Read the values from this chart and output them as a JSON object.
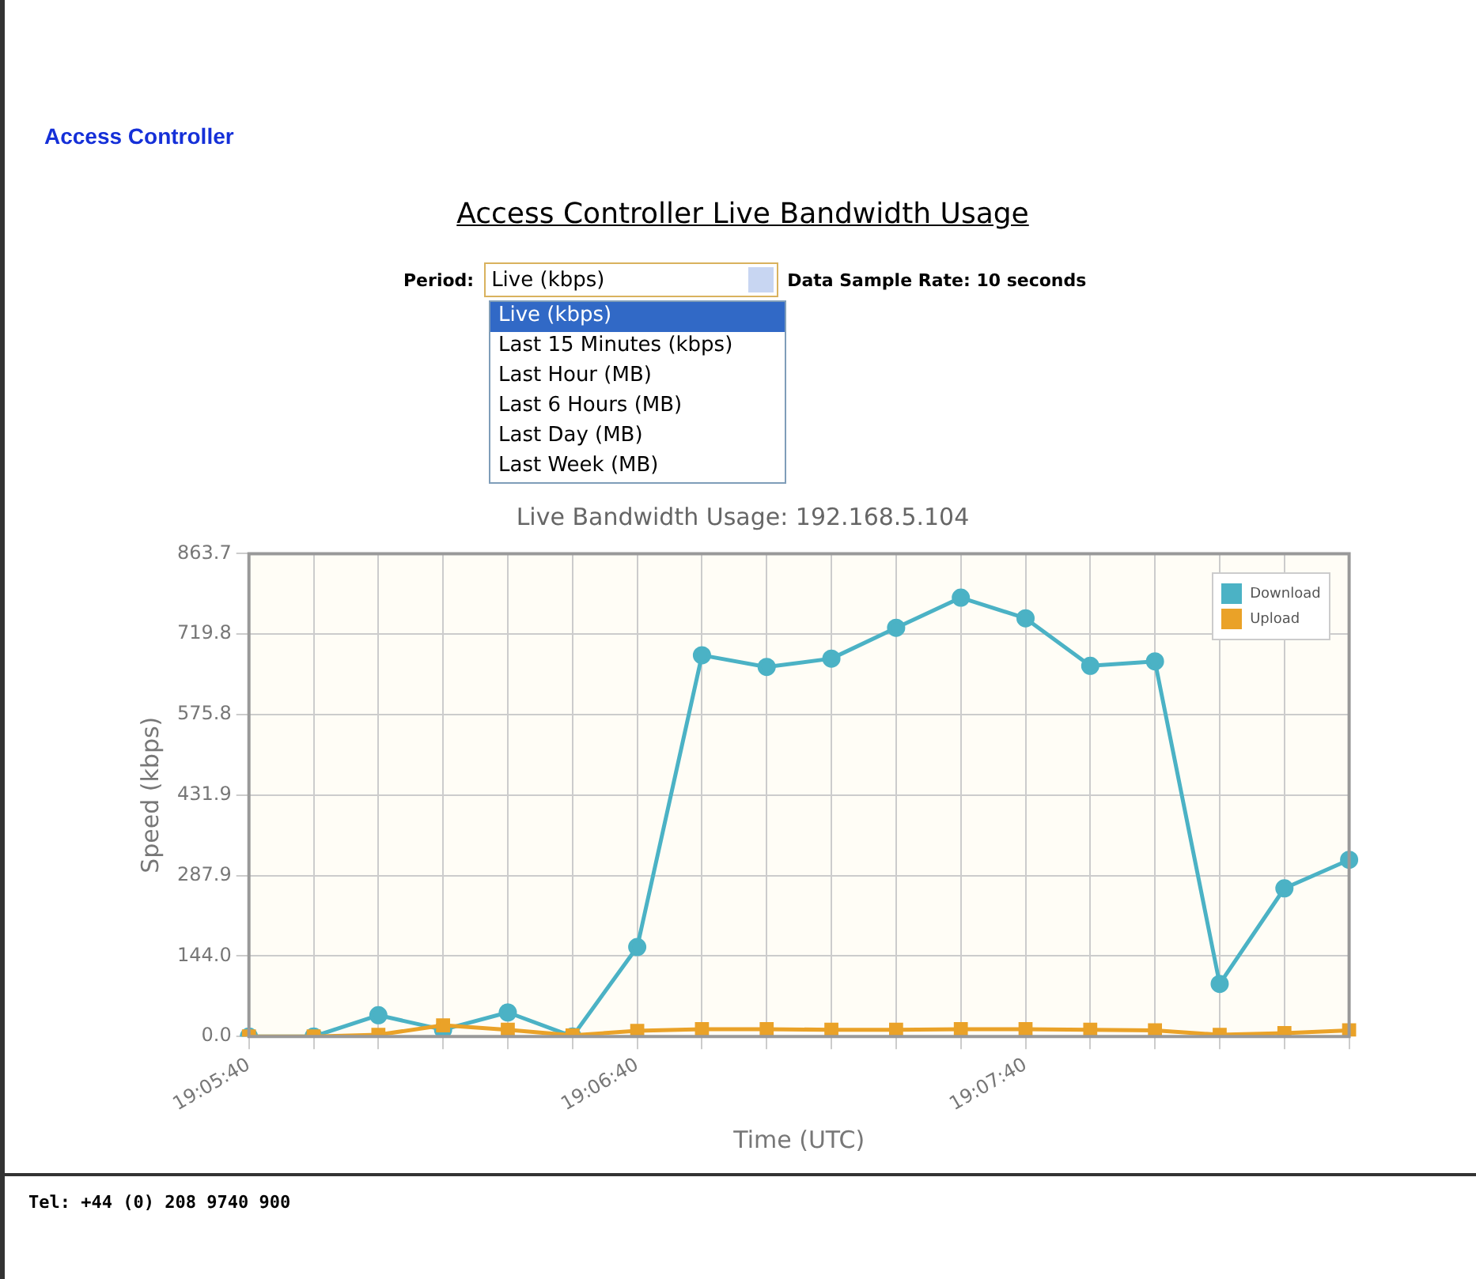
{
  "chart_data": {
    "type": "line",
    "title": "Access Controller Live Bandwidth Usage",
    "subtitle": "Live Bandwidth Usage: 192.168.5.104",
    "xlabel": "Time (UTC)",
    "ylabel": "Speed (kbps)",
    "categories": [
      "19:05:40",
      null,
      null,
      null,
      null,
      null,
      "19:06:40",
      null,
      null,
      null,
      null,
      null,
      "19:07:40",
      null,
      null,
      null,
      null,
      null
    ],
    "series": [
      {
        "name": "Download",
        "color": "#4bb2c5",
        "marker": "circle",
        "values": [
          0,
          0,
          38,
          12,
          43,
          0,
          160,
          682,
          661,
          676,
          731,
          785,
          748,
          663,
          671,
          94,
          265,
          316
        ]
      },
      {
        "name": "Upload",
        "color": "#eaa228",
        "marker": "square",
        "values": [
          0,
          0,
          3,
          20,
          12,
          2,
          10,
          13,
          13,
          12,
          12,
          13,
          13,
          12,
          11,
          3,
          6,
          11
        ]
      }
    ],
    "ylim": [
      0,
      863.7
    ],
    "yticks": [
      {
        "value": 0,
        "label": "0.0"
      },
      {
        "value": 144.0,
        "label": "144.0"
      },
      {
        "value": 287.9,
        "label": "287.9"
      },
      {
        "value": 431.9,
        "label": "431.9"
      },
      {
        "value": 575.8,
        "label": "575.8"
      },
      {
        "value": 719.8,
        "label": "719.8"
      },
      {
        "value": 863.7,
        "label": "863.7"
      }
    ],
    "grid": true,
    "legend": "top right",
    "line_style": "solid",
    "annotations": [
      "Access Controller",
      "Period:",
      "Live (kbps)",
      "Live (kbps)",
      "Last 15 Minutes (kbps)",
      "Last Hour (MB)",
      "Last 6 Hours (MB)",
      "Last Day (MB)",
      "Last Week (MB)",
      "Data Sample Rate: 10 seconds",
      "Tel: +44 (0) 208 9740 900"
    ]
  }
}
